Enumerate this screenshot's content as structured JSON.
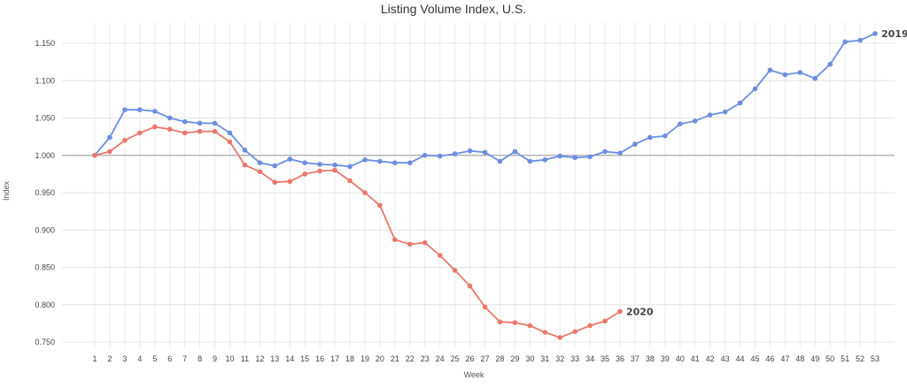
{
  "chart_data": {
    "type": "line",
    "title": "Listing Volume Index, U.S.",
    "xlabel": "Week",
    "ylabel": "Index",
    "ylim": [
      0.735,
      1.17
    ],
    "xlim": [
      1,
      53
    ],
    "grid": true,
    "y_ticks": [
      "0.750",
      "0.800",
      "0.850",
      "0.900",
      "0.950",
      "1.000",
      "1.050",
      "1.100",
      "1.150"
    ],
    "x_ticks": [
      "1",
      "2",
      "3",
      "4",
      "5",
      "6",
      "7",
      "8",
      "9",
      "10",
      "11",
      "12",
      "13",
      "14",
      "15",
      "16",
      "17",
      "18",
      "19",
      "20",
      "21",
      "22",
      "23",
      "24",
      "25",
      "26",
      "27",
      "28",
      "29",
      "30",
      "31",
      "32",
      "33",
      "34",
      "35",
      "36",
      "37",
      "38",
      "39",
      "40",
      "41",
      "42",
      "43",
      "44",
      "45",
      "46",
      "47",
      "48",
      "49",
      "50",
      "51",
      "52",
      "53"
    ],
    "reference_line": 1.0,
    "series": [
      {
        "name": "2019",
        "color": "#6c8ee0",
        "x": [
          1,
          2,
          3,
          4,
          5,
          6,
          7,
          8,
          9,
          10,
          11,
          12,
          13,
          14,
          15,
          16,
          17,
          18,
          19,
          20,
          21,
          22,
          23,
          24,
          25,
          26,
          27,
          28,
          29,
          30,
          31,
          32,
          33,
          34,
          35,
          36,
          37,
          38,
          39,
          40,
          41,
          42,
          43,
          44,
          45,
          46,
          47,
          48,
          49,
          50,
          51,
          52,
          53
        ],
        "values": [
          1.0,
          1.024,
          1.061,
          1.061,
          1.059,
          1.05,
          1.045,
          1.043,
          1.043,
          1.03,
          1.007,
          0.99,
          0.986,
          0.995,
          0.99,
          0.988,
          0.987,
          0.985,
          0.994,
          0.992,
          0.99,
          0.99,
          1.0,
          0.999,
          1.002,
          1.006,
          1.004,
          0.992,
          1.005,
          0.992,
          0.994,
          0.999,
          0.997,
          0.998,
          1.005,
          1.003,
          1.015,
          1.024,
          1.026,
          1.042,
          1.046,
          1.054,
          1.058,
          1.07,
          1.089,
          1.114,
          1.108,
          1.111,
          1.103,
          1.122,
          1.152,
          1.154,
          1.163
        ]
      },
      {
        "name": "2020",
        "color": "#e8786a",
        "x": [
          1,
          2,
          3,
          4,
          5,
          6,
          7,
          8,
          9,
          10,
          11,
          12,
          13,
          14,
          15,
          16,
          17,
          18,
          19,
          20,
          21,
          22,
          23,
          24,
          25,
          26,
          27,
          28,
          29,
          30,
          31,
          32,
          33,
          34,
          35,
          36
        ],
        "values": [
          1.0,
          1.005,
          1.02,
          1.03,
          1.038,
          1.035,
          1.03,
          1.032,
          1.032,
          1.018,
          0.987,
          0.978,
          0.964,
          0.965,
          0.975,
          0.979,
          0.98,
          0.966,
          0.95,
          0.933,
          0.887,
          0.881,
          0.883,
          0.866,
          0.846,
          0.825,
          0.797,
          0.777,
          0.776,
          0.772,
          0.763,
          0.756,
          0.764,
          0.772,
          0.778,
          0.791
        ]
      }
    ]
  }
}
